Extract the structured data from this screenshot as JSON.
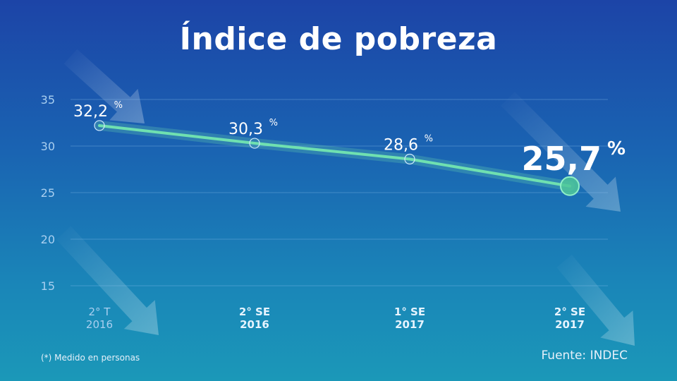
{
  "title": "Índice de pobreza",
  "footnote": "(*) Medido en personas",
  "source": "Fuente: INDEC",
  "chart_data": {
    "type": "line",
    "title": "Índice de pobreza",
    "categories": [
      [
        "2° T",
        "2016"
      ],
      [
        "2° SE",
        "2016"
      ],
      [
        "1° SE",
        "2017"
      ],
      [
        "2° SE",
        "2017"
      ]
    ],
    "values": [
      32.2,
      30.3,
      28.6,
      25.7
    ],
    "value_labels": [
      "32,2",
      "30,3",
      "28,6",
      "25,7"
    ],
    "value_unit": "%",
    "y_ticks": [
      35,
      30,
      25,
      20,
      15
    ],
    "ylim": [
      15,
      35
    ],
    "grid": true,
    "line_color": "#6fe0b0"
  }
}
